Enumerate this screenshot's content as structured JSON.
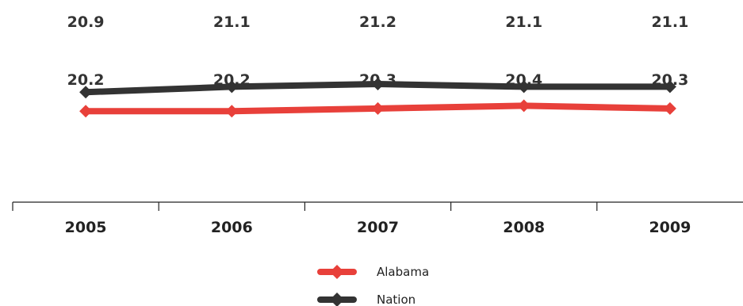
{
  "chart_data": {
    "type": "line",
    "categories": [
      "2005",
      "2006",
      "2007",
      "2008",
      "2009"
    ],
    "series": [
      {
        "name": "Alabama",
        "values": [
          20.2,
          20.2,
          20.3,
          20.4,
          20.3
        ],
        "color": "#e8403a"
      },
      {
        "name": "Nation",
        "values": [
          20.9,
          21.1,
          21.2,
          21.1,
          21.1
        ],
        "color": "#333333"
      }
    ],
    "title": "",
    "xlabel": "",
    "ylabel": "",
    "ylim": [
      17,
      24
    ],
    "grid": false,
    "legend": "bottom"
  }
}
